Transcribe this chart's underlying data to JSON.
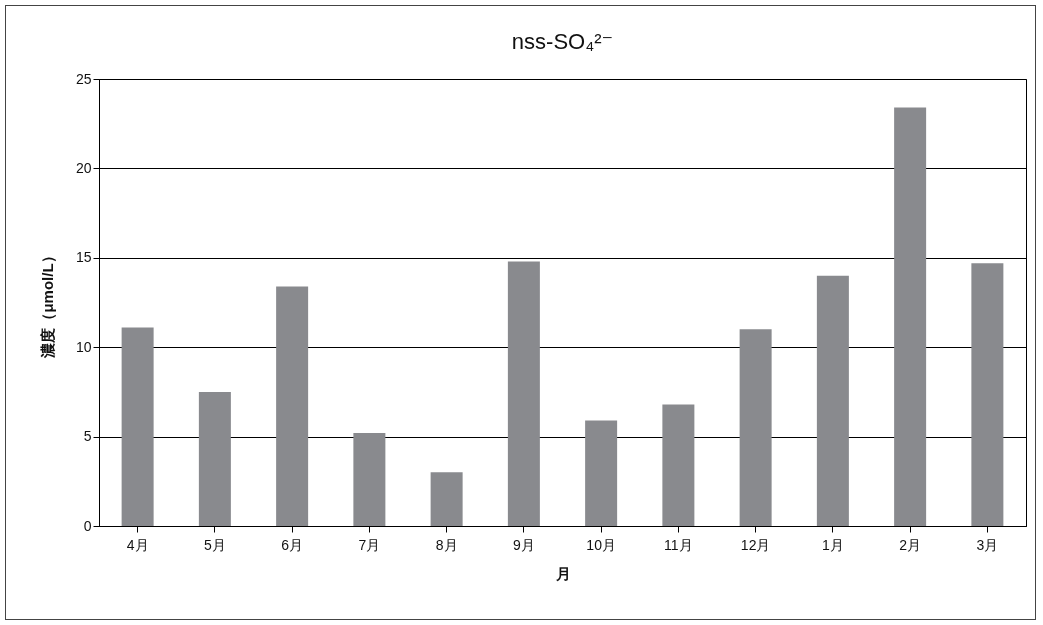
{
  "chart_data": {
    "type": "bar",
    "title": "nss-SO₄²⁻",
    "xlabel": "月",
    "ylabel": "濃度（μmol/L）",
    "categories": [
      "4月",
      "5月",
      "6月",
      "7月",
      "8月",
      "9月",
      "10月",
      "11月",
      "12月",
      "1月",
      "2月",
      "3月"
    ],
    "values": [
      11.1,
      7.5,
      13.4,
      5.2,
      3.0,
      14.8,
      5.9,
      6.8,
      11.0,
      14.0,
      23.4,
      14.7
    ],
    "color": "#898a8e",
    "ylim": [
      0,
      25
    ],
    "yticks": [
      0,
      5,
      10,
      15,
      20,
      25
    ],
    "grid": "y"
  }
}
